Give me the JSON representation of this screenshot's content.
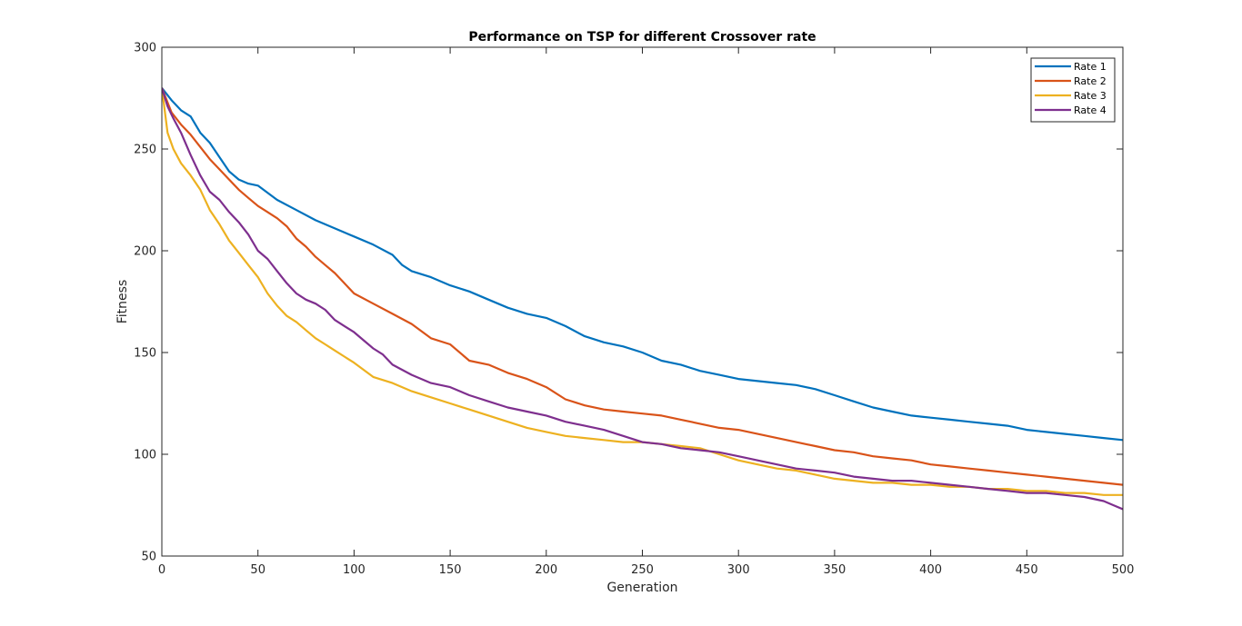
{
  "chart_data": {
    "type": "line",
    "title": "Performance on TSP for different Crossover rate",
    "xlabel": "Generation",
    "ylabel": "Fitness",
    "xlim": [
      0,
      500
    ],
    "ylim": [
      50,
      300
    ],
    "xticks": [
      0,
      50,
      100,
      150,
      200,
      250,
      300,
      350,
      400,
      450,
      500
    ],
    "yticks": [
      50,
      100,
      150,
      200,
      250,
      300
    ],
    "grid": false,
    "legend_position": "top-right",
    "series": [
      {
        "name": "Rate 1",
        "color": "#0072BD",
        "x": [
          0,
          5,
          10,
          15,
          20,
          25,
          30,
          35,
          40,
          45,
          50,
          60,
          70,
          80,
          90,
          100,
          110,
          120,
          125,
          130,
          140,
          150,
          160,
          170,
          180,
          190,
          200,
          210,
          220,
          230,
          240,
          250,
          260,
          270,
          280,
          290,
          300,
          310,
          320,
          330,
          340,
          350,
          360,
          370,
          380,
          390,
          400,
          410,
          420,
          430,
          440,
          450,
          460,
          470,
          480,
          490,
          500
        ],
        "values": [
          280,
          274,
          269,
          266,
          258,
          253,
          246,
          239,
          235,
          233,
          232,
          225,
          220,
          215,
          211,
          207,
          203,
          198,
          193,
          190,
          187,
          183,
          180,
          176,
          172,
          169,
          167,
          163,
          158,
          155,
          153,
          150,
          146,
          144,
          141,
          139,
          137,
          136,
          135,
          134,
          132,
          129,
          126,
          123,
          121,
          119,
          118,
          117,
          116,
          115,
          114,
          112,
          111,
          110,
          109,
          108,
          107
        ]
      },
      {
        "name": "Rate 2",
        "color": "#D95319",
        "x": [
          0,
          5,
          10,
          15,
          20,
          25,
          30,
          35,
          40,
          45,
          50,
          55,
          60,
          65,
          70,
          75,
          80,
          85,
          90,
          95,
          100,
          110,
          120,
          130,
          140,
          150,
          160,
          170,
          180,
          190,
          200,
          210,
          220,
          230,
          240,
          250,
          260,
          270,
          280,
          290,
          300,
          310,
          320,
          330,
          340,
          350,
          360,
          370,
          380,
          390,
          400,
          410,
          420,
          430,
          440,
          450,
          460,
          470,
          480,
          490,
          500
        ],
        "values": [
          280,
          268,
          262,
          257,
          251,
          245,
          240,
          235,
          230,
          226,
          222,
          219,
          216,
          212,
          206,
          202,
          197,
          193,
          189,
          184,
          179,
          174,
          169,
          164,
          157,
          154,
          146,
          144,
          140,
          137,
          133,
          127,
          124,
          122,
          121,
          120,
          119,
          117,
          115,
          113,
          112,
          110,
          108,
          106,
          104,
          102,
          101,
          99,
          98,
          97,
          95,
          94,
          93,
          92,
          91,
          90,
          89,
          88,
          87,
          86,
          85
        ]
      },
      {
        "name": "Rate 3",
        "color": "#EDB120",
        "x": [
          0,
          3,
          6,
          10,
          15,
          20,
          25,
          30,
          35,
          40,
          45,
          50,
          55,
          60,
          65,
          70,
          75,
          80,
          85,
          90,
          95,
          100,
          110,
          120,
          130,
          140,
          150,
          160,
          170,
          180,
          190,
          200,
          210,
          220,
          230,
          240,
          250,
          260,
          270,
          280,
          290,
          300,
          310,
          320,
          330,
          340,
          350,
          360,
          370,
          380,
          390,
          400,
          410,
          420,
          430,
          440,
          450,
          460,
          470,
          480,
          490,
          500
        ],
        "values": [
          280,
          258,
          250,
          243,
          237,
          230,
          220,
          213,
          205,
          199,
          193,
          187,
          179,
          173,
          168,
          165,
          161,
          157,
          154,
          151,
          148,
          145,
          138,
          135,
          131,
          128,
          125,
          122,
          119,
          116,
          113,
          111,
          109,
          108,
          107,
          106,
          106,
          105,
          104,
          103,
          100,
          97,
          95,
          93,
          92,
          90,
          88,
          87,
          86,
          86,
          85,
          85,
          84,
          84,
          83,
          83,
          82,
          82,
          81,
          81,
          80,
          80
        ]
      },
      {
        "name": "Rate 4",
        "color": "#7E2F8E",
        "x": [
          0,
          3,
          6,
          10,
          15,
          20,
          25,
          30,
          35,
          40,
          45,
          50,
          55,
          60,
          65,
          70,
          75,
          80,
          85,
          90,
          95,
          100,
          105,
          110,
          115,
          120,
          130,
          140,
          150,
          160,
          170,
          180,
          190,
          200,
          210,
          220,
          230,
          240,
          250,
          260,
          270,
          280,
          290,
          300,
          310,
          320,
          330,
          340,
          350,
          360,
          370,
          380,
          390,
          400,
          410,
          420,
          430,
          440,
          450,
          460,
          470,
          480,
          490,
          495,
          500
        ],
        "values": [
          280,
          271,
          265,
          258,
          247,
          237,
          229,
          225,
          219,
          214,
          208,
          200,
          196,
          190,
          184,
          179,
          176,
          174,
          171,
          166,
          163,
          160,
          156,
          152,
          149,
          144,
          139,
          135,
          133,
          129,
          126,
          123,
          121,
          119,
          116,
          114,
          112,
          109,
          106,
          105,
          103,
          102,
          101,
          99,
          97,
          95,
          93,
          92,
          91,
          89,
          88,
          87,
          87,
          86,
          85,
          84,
          83,
          82,
          81,
          81,
          80,
          79,
          77,
          75,
          73
        ]
      }
    ]
  }
}
